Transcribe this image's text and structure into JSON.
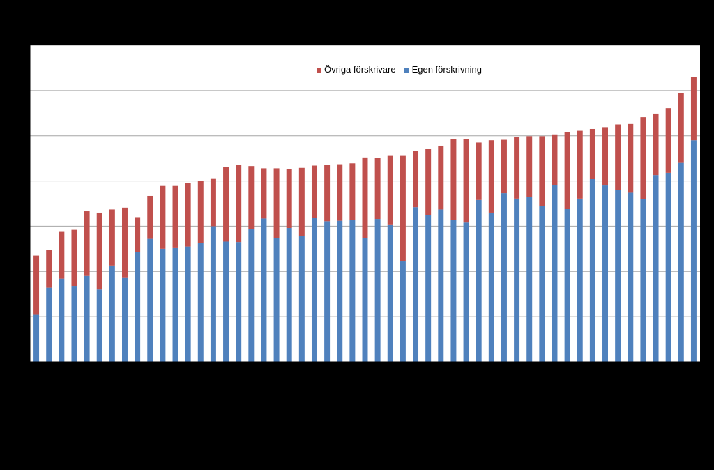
{
  "chart_data": {
    "type": "bar",
    "stacked": true,
    "grid": true,
    "legend_position": "top-center",
    "ylim": [
      0,
      7
    ],
    "y_gridlines": [
      0,
      1,
      2,
      3,
      4,
      5,
      6,
      7
    ],
    "n_categories": 53,
    "series": [
      {
        "name": "Egen förskrivning",
        "color": "#4f81bd",
        "values": [
          1.04,
          1.64,
          1.84,
          1.68,
          1.9,
          1.6,
          2.13,
          1.87,
          2.43,
          2.72,
          2.5,
          2.53,
          2.55,
          2.63,
          3.0,
          2.66,
          2.65,
          2.94,
          3.17,
          2.73,
          2.96,
          2.79,
          3.19,
          3.11,
          3.12,
          3.14,
          2.74,
          3.16,
          3.04,
          2.22,
          3.42,
          3.24,
          3.37,
          3.14,
          3.08,
          3.58,
          3.3,
          3.73,
          3.61,
          3.65,
          3.44,
          3.91,
          3.38,
          3.61,
          4.05,
          3.9,
          3.8,
          3.74,
          3.6,
          4.13,
          4.18,
          4.4,
          4.9
        ]
      },
      {
        "name": "Övriga förskrivare",
        "color": "#c0504d",
        "values": [
          1.31,
          0.83,
          1.05,
          1.24,
          1.43,
          1.7,
          1.24,
          1.54,
          0.77,
          0.95,
          1.39,
          1.36,
          1.4,
          1.37,
          1.06,
          1.65,
          1.71,
          1.39,
          1.11,
          1.55,
          1.31,
          1.5,
          1.15,
          1.25,
          1.25,
          1.25,
          1.78,
          1.35,
          1.53,
          2.35,
          1.24,
          1.47,
          1.41,
          1.78,
          1.85,
          1.27,
          1.6,
          1.18,
          1.37,
          1.34,
          1.55,
          1.12,
          1.7,
          1.5,
          1.1,
          1.29,
          1.45,
          1.52,
          1.81,
          1.36,
          1.43,
          1.55,
          1.4
        ]
      }
    ]
  }
}
